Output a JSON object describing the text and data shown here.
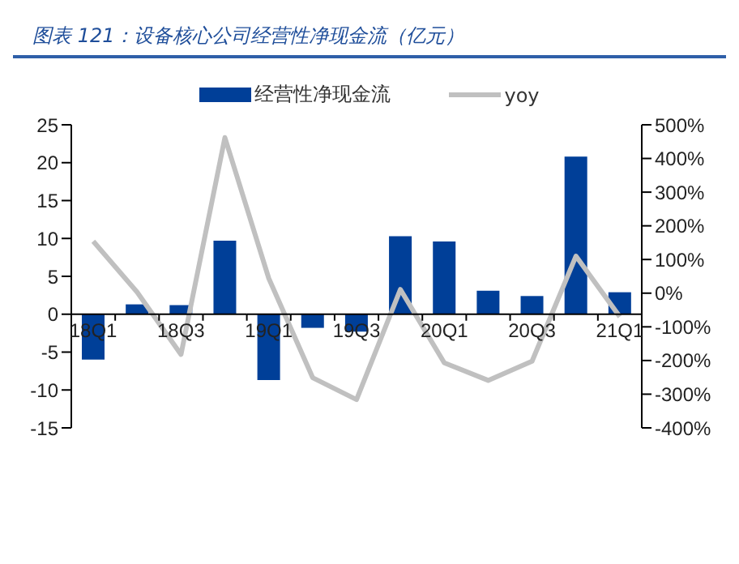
{
  "chart_data": {
    "type": "bar",
    "title": "图表 121：设备核心公司经营性净现金流（亿元）",
    "categories": [
      "18Q1",
      null,
      "18Q3",
      null,
      "19Q1",
      null,
      "19Q3",
      null,
      "20Q1",
      null,
      "20Q3",
      null,
      "21Q1"
    ],
    "series": [
      {
        "name": "经营性净现金流",
        "color": "#003f98",
        "values": [
          -6,
          1.3,
          1.2,
          9.7,
          -8.7,
          -1.8,
          -2.3,
          10.3,
          9.6,
          3.1,
          2.4,
          20.8,
          2.9
        ]
      },
      {
        "name": "yoy",
        "type": "line",
        "axis": "y2",
        "color": "#c0c0c0",
        "values": [
          154,
          3,
          -182,
          462,
          44,
          -251,
          -316,
          11,
          -207,
          -259,
          -202,
          110,
          -70
        ]
      }
    ],
    "ylim": [
      -15,
      25
    ],
    "yticks": [
      -15,
      -10,
      -5,
      0,
      5,
      10,
      15,
      20,
      25
    ],
    "y2lim": [
      -400,
      500
    ],
    "y2ticks": [
      {
        "value": -400,
        "label": "-400%"
      },
      {
        "value": -300,
        "label": "-300%"
      },
      {
        "value": -200,
        "label": "-200%"
      },
      {
        "value": -100,
        "label": "-100%"
      },
      {
        "value": 0,
        "label": "0%"
      },
      {
        "value": 100,
        "label": "100%"
      },
      {
        "value": 200,
        "label": "200%"
      },
      {
        "value": 300,
        "label": "300%"
      },
      {
        "value": 400,
        "label": "400%"
      },
      {
        "value": 500,
        "label": "500%"
      }
    ],
    "legend": "top",
    "grid": false,
    "marker": "none",
    "line_style": "solid"
  }
}
